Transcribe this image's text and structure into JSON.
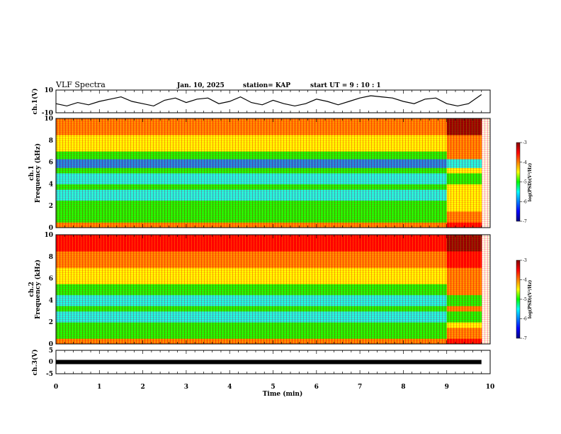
{
  "header": {
    "title": "VLF Spectra",
    "date": "Jan. 10, 2025",
    "station": "station= KAP",
    "start_ut": "start UT =   9 : 10 : 1"
  },
  "colorbar": {
    "label": "log(PSD)(V²/Hz)",
    "ticks": [
      "-3",
      "-4",
      "-5",
      "-6",
      "-7"
    ],
    "colors": [
      "#800000",
      "#ff0000",
      "#ff8000",
      "#ffff00",
      "#00ff00",
      "#00ffff",
      "#0080ff",
      "#0000ff",
      "#000080"
    ]
  },
  "chart_data": [
    {
      "type": "line",
      "panel": "ch1-waveform",
      "ylabel": "ch.1(V)",
      "ylim": [
        -10,
        10
      ],
      "yticks": [
        "10",
        "-10"
      ],
      "xlim": [
        0,
        10
      ],
      "color": "#000000",
      "x": [
        0.0,
        0.25,
        0.5,
        0.75,
        1.0,
        1.25,
        1.5,
        1.75,
        2.0,
        2.25,
        2.5,
        2.75,
        3.0,
        3.25,
        3.5,
        3.75,
        4.0,
        4.25,
        4.5,
        4.75,
        5.0,
        5.25,
        5.5,
        5.75,
        6.0,
        6.25,
        6.5,
        6.75,
        7.0,
        7.25,
        7.5,
        7.75,
        8.0,
        8.25,
        8.5,
        8.75,
        9.0,
        9.25,
        9.5,
        9.8
      ],
      "y": [
        -2,
        -4,
        -1,
        -3,
        0,
        2,
        4,
        0,
        -2,
        -4,
        1,
        3,
        -1,
        2,
        3,
        -2,
        0,
        4,
        -1,
        -3,
        1,
        -2,
        -4,
        -2,
        2,
        0,
        -3,
        0,
        3,
        5,
        4,
        3,
        0,
        -2,
        2,
        3,
        -2,
        -4,
        -2,
        6
      ]
    },
    {
      "type": "heatmap",
      "panel": "ch1-spectrogram",
      "ylabel": "ch.1\nFrequency (kHz)",
      "xlim": [
        0,
        10
      ],
      "ylim": [
        0,
        10
      ],
      "yticks": [
        "0",
        "2",
        "4",
        "6",
        "8",
        "10"
      ],
      "zlim": [
        -7,
        -3
      ],
      "x": [
        0,
        1,
        2,
        3,
        4,
        5,
        6,
        7,
        8,
        9,
        9.8
      ],
      "y": [
        0,
        1,
        2,
        3,
        4,
        5,
        6,
        7,
        8,
        9,
        10
      ],
      "bands": [
        {
          "from": 0,
          "to": 0.5,
          "z": -4.2
        },
        {
          "from": 0.5,
          "to": 1.5,
          "z": -5.0
        },
        {
          "from": 1.5,
          "to": 2.5,
          "z": -5.2
        },
        {
          "from": 2.5,
          "to": 3.5,
          "z": -5.3
        },
        {
          "from": 3.5,
          "to": 4.0,
          "z": -5.1
        },
        {
          "from": 4.0,
          "to": 5.0,
          "z": -5.7
        },
        {
          "from": 5.0,
          "to": 5.5,
          "z": -5.2
        },
        {
          "from": 5.5,
          "to": 6.3,
          "z": -6.2
        },
        {
          "from": 6.3,
          "to": 7.0,
          "z": -5.0
        },
        {
          "from": 7.0,
          "to": 8.5,
          "z": -4.6
        },
        {
          "from": 8.5,
          "to": 10.0,
          "z": -4.0
        }
      ]
    },
    {
      "type": "heatmap",
      "panel": "ch2-spectrogram",
      "ylabel": "ch.2\nFrequency (kHz)",
      "xlim": [
        0,
        10
      ],
      "ylim": [
        0,
        10
      ],
      "yticks": [
        "0",
        "2",
        "4",
        "6",
        "8",
        "10"
      ],
      "zlim": [
        -7,
        -3
      ],
      "x": [
        0,
        1,
        2,
        3,
        4,
        5,
        6,
        7,
        8,
        9,
        9.8
      ],
      "y": [
        0,
        1,
        2,
        3,
        4,
        5,
        6,
        7,
        8,
        9,
        10
      ],
      "bands": [
        {
          "from": 0,
          "to": 0.5,
          "z": -4.2
        },
        {
          "from": 0.5,
          "to": 1.5,
          "z": -5.0
        },
        {
          "from": 1.5,
          "to": 2.0,
          "z": -5.1
        },
        {
          "from": 2.0,
          "to": 3.0,
          "z": -5.7
        },
        {
          "from": 3.0,
          "to": 3.5,
          "z": -5.0
        },
        {
          "from": 3.5,
          "to": 4.5,
          "z": -5.6
        },
        {
          "from": 4.5,
          "to": 5.5,
          "z": -5.0
        },
        {
          "from": 5.5,
          "to": 7.0,
          "z": -4.6
        },
        {
          "from": 7.0,
          "to": 8.5,
          "z": -4.1
        },
        {
          "from": 8.5,
          "to": 10.0,
          "z": -3.6
        }
      ]
    },
    {
      "type": "line",
      "panel": "ch3-waveform",
      "ylabel": "ch.3(V)",
      "ylim": [
        -5,
        5
      ],
      "yticks": [
        "5",
        "0",
        "-5"
      ],
      "xlim": [
        0,
        10
      ],
      "xlabel": "Time (min)",
      "xticks": [
        "0",
        "1",
        "2",
        "3",
        "4",
        "5",
        "6",
        "7",
        "8",
        "9",
        "10"
      ],
      "color": "#000000",
      "x": [
        0.0,
        9.8
      ],
      "y": [
        0,
        0
      ]
    }
  ]
}
